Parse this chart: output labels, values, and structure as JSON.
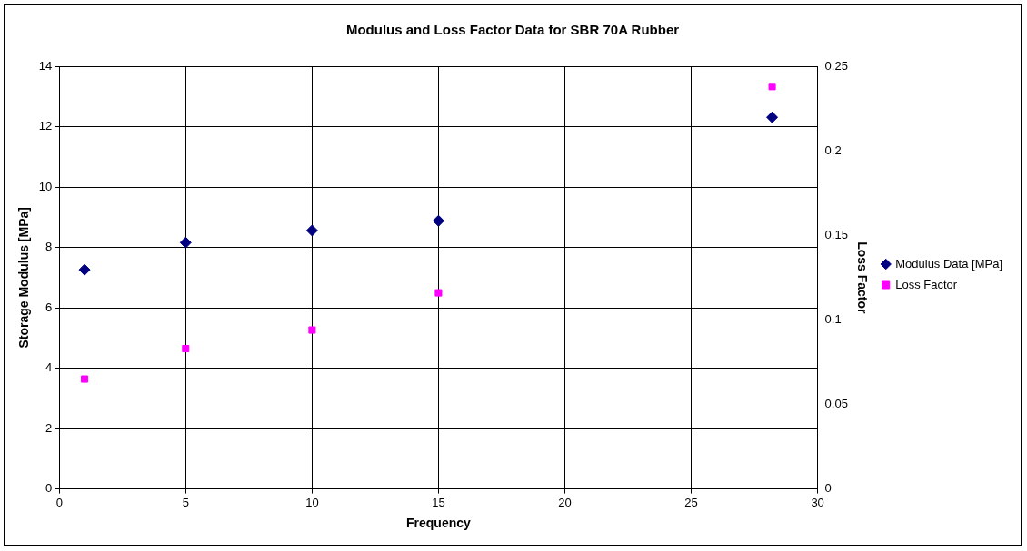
{
  "chart_data": {
    "type": "scatter",
    "title": "Modulus and Loss Factor Data for SBR 70A Rubber",
    "xlabel": "Frequency",
    "ylabel": "Storage Modulus [MPa]",
    "y2label": "Loss Factor",
    "x": [
      1,
      5,
      10,
      15,
      28.2
    ],
    "series": [
      {
        "name": "Modulus Data [MPa]",
        "color": "#000080",
        "marker": "diamond",
        "values": [
          7.26,
          8.16,
          8.56,
          8.88,
          12.31
        ]
      },
      {
        "name": "Loss Factor",
        "color": "#ff00ff",
        "marker": "square",
        "axis": "y2",
        "values": [
          0.065,
          0.083,
          0.094,
          0.116,
          0.238
        ]
      }
    ],
    "xlim": [
      0,
      30
    ],
    "xticks": [
      0,
      5,
      10,
      15,
      20,
      25,
      30
    ],
    "ylim": [
      0,
      14
    ],
    "yticks": [
      0,
      2,
      4,
      6,
      8,
      10,
      12,
      14
    ],
    "y2lim": [
      0,
      0.25
    ],
    "y2ticks": [
      0,
      0.05,
      0.1,
      0.15,
      0.2,
      0.25
    ],
    "grid": true,
    "legend": "right"
  }
}
